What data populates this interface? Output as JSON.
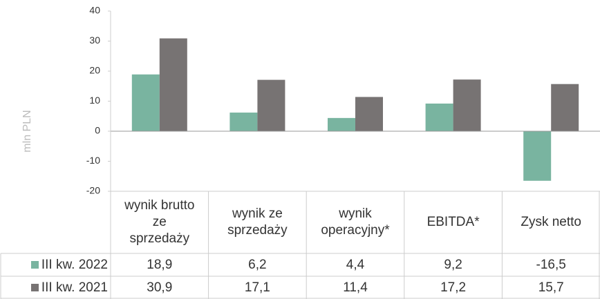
{
  "chart_data": {
    "type": "bar",
    "y_label": "mln PLN",
    "categories": [
      "wynik brutto\nze\nsprzedaży",
      "wynik ze\nsprzedaży",
      "wynik\noperacyjny*",
      "EBITDA*",
      "Zysk netto"
    ],
    "series": [
      {
        "name": "III kw. 2022",
        "color": "#79b4a0",
        "values": [
          18.9,
          6.2,
          4.4,
          9.2,
          -16.5
        ],
        "value_labels": [
          "18,9",
          "6,2",
          "4,4",
          "9,2",
          "-16,5"
        ]
      },
      {
        "name": "III kw. 2021",
        "color": "#777373",
        "values": [
          30.9,
          17.1,
          11.4,
          17.2,
          15.7
        ],
        "value_labels": [
          "30,9",
          "17,1",
          "11,4",
          "17,2",
          "15,7"
        ]
      }
    ],
    "ylim": [
      -20,
      40
    ],
    "yticks": [
      -20,
      -10,
      0,
      10,
      20,
      30,
      40
    ],
    "grid": false
  }
}
